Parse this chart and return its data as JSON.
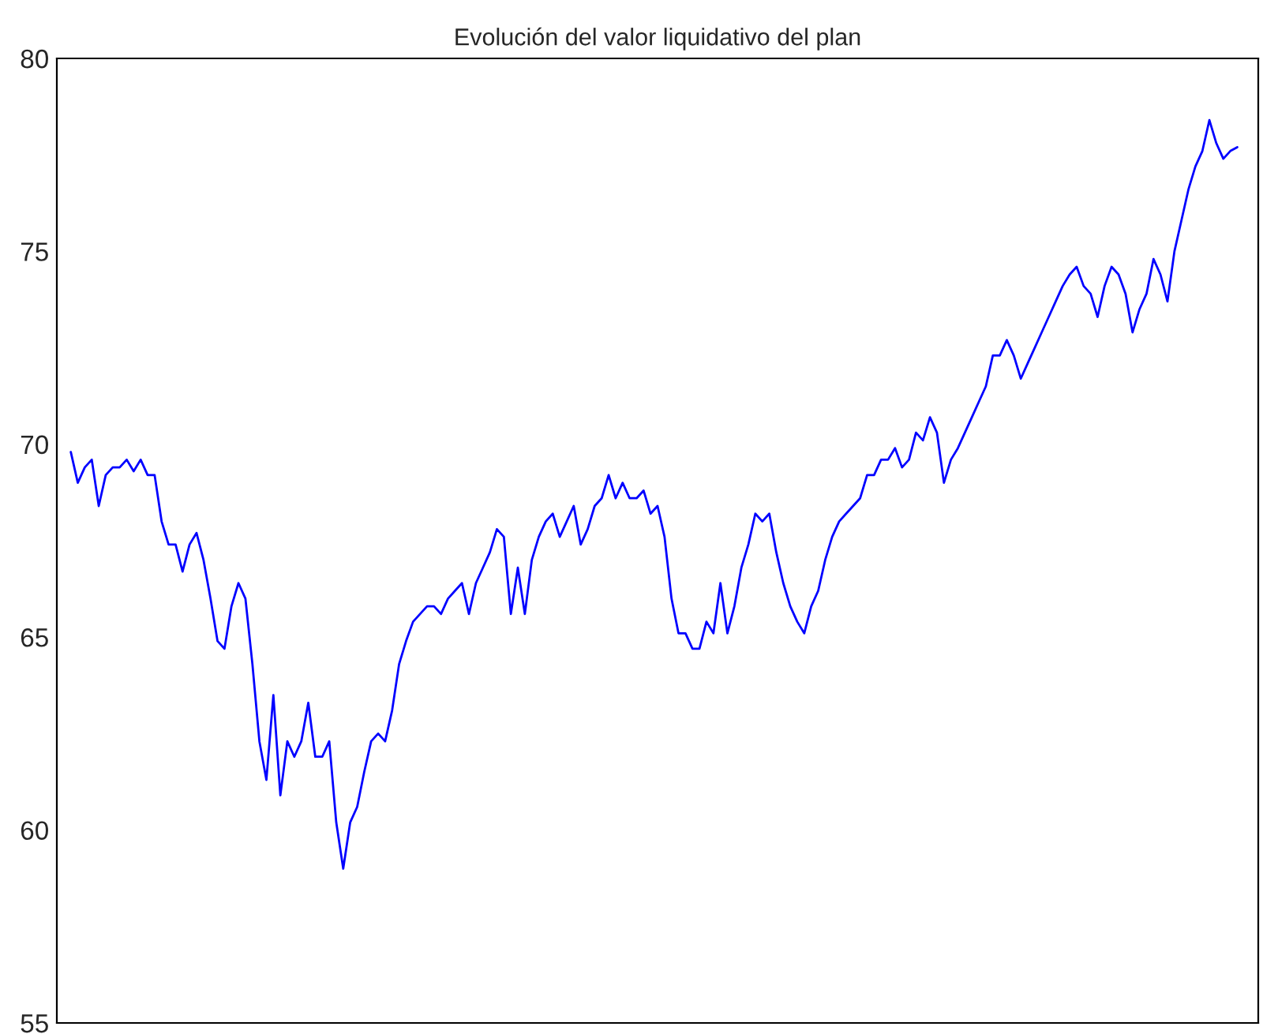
{
  "chart_data": {
    "type": "line",
    "title": "Evolución del valor liquidativo del plan",
    "categories": [
      null,
      null,
      null,
      null,
      null,
      null,
      null,
      null,
      null,
      null,
      null,
      null,
      null,
      null,
      null,
      null,
      null,
      null,
      null,
      null,
      null,
      null,
      null,
      null,
      null,
      null,
      null,
      null,
      null,
      null,
      null,
      null,
      null,
      null,
      null,
      null,
      null,
      null,
      null,
      null,
      null,
      null,
      null,
      null,
      null,
      null,
      null,
      null,
      null,
      null,
      null,
      null,
      null,
      null,
      null,
      null,
      null,
      null,
      null,
      null,
      null,
      null,
      null,
      null,
      null,
      null,
      null,
      null,
      null,
      null,
      null,
      null,
      null,
      null,
      null,
      null,
      null,
      null,
      null,
      null,
      null,
      null,
      null,
      null,
      null,
      null,
      null,
      null,
      null,
      null,
      null,
      null,
      null,
      null,
      null,
      null,
      null,
      null,
      null,
      null,
      null,
      null,
      null,
      null,
      null,
      null,
      null,
      null,
      null,
      null,
      null,
      null,
      null,
      null,
      null,
      null,
      null,
      null,
      null,
      null,
      null,
      null,
      null,
      null,
      null,
      null,
      null,
      null,
      null,
      null,
      null,
      null,
      null,
      null,
      null,
      null,
      null,
      null,
      null,
      null,
      null,
      null,
      null,
      null,
      null,
      null,
      null,
      null,
      null,
      null,
      null,
      null,
      null,
      null,
      null,
      null,
      null,
      null,
      null,
      null,
      null,
      null,
      null,
      null,
      null,
      null,
      null,
      null
    ],
    "series": [
      {
        "color": "#0000ff",
        "values": [
          69.8,
          69.0,
          69.4,
          69.6,
          68.4,
          69.2,
          69.4,
          69.4,
          69.6,
          69.3,
          69.6,
          69.2,
          69.2,
          68.0,
          67.4,
          67.4,
          66.7,
          67.4,
          67.7,
          67.0,
          66.0,
          64.9,
          64.7,
          65.8,
          66.4,
          66.0,
          64.3,
          62.3,
          61.3,
          63.5,
          60.9,
          62.3,
          61.9,
          62.3,
          63.3,
          61.9,
          61.9,
          62.3,
          60.2,
          59.0,
          60.2,
          60.6,
          61.5,
          62.3,
          62.5,
          62.3,
          63.1,
          64.3,
          64.9,
          65.4,
          65.6,
          65.8,
          65.8,
          65.6,
          66.0,
          66.2,
          66.4,
          65.6,
          66.4,
          66.8,
          67.2,
          67.8,
          67.6,
          65.6,
          66.8,
          65.6,
          67.0,
          67.6,
          68.0,
          68.2,
          67.6,
          68.0,
          68.4,
          67.4,
          67.8,
          68.4,
          68.6,
          69.2,
          68.6,
          69.0,
          68.6,
          68.6,
          68.8,
          68.2,
          68.4,
          67.6,
          66.0,
          65.1,
          65.1,
          64.7,
          64.7,
          65.4,
          65.1,
          66.4,
          65.1,
          65.8,
          66.8,
          67.4,
          68.2,
          68.0,
          68.2,
          67.2,
          66.4,
          65.8,
          65.4,
          65.1,
          65.8,
          66.2,
          67.0,
          67.6,
          68.0,
          68.2,
          68.4,
          68.6,
          69.2,
          69.2,
          69.6,
          69.6,
          69.9,
          69.4,
          69.6,
          70.3,
          70.1,
          70.7,
          70.3,
          69.0,
          69.6,
          69.9,
          70.3,
          70.7,
          71.1,
          71.5,
          72.3,
          72.3,
          72.7,
          72.3,
          71.7,
          72.1,
          72.5,
          72.9,
          73.3,
          73.7,
          74.1,
          74.4,
          74.6,
          74.1,
          73.9,
          73.3,
          74.1,
          74.6,
          74.4,
          73.9,
          72.9,
          73.5,
          73.9,
          74.8,
          74.4,
          73.7,
          75.0,
          75.8,
          76.6,
          77.2,
          77.6,
          78.4,
          77.8,
          77.4,
          77.6,
          77.7
        ]
      }
    ],
    "ylim": [
      55,
      80
    ],
    "yticks": [
      55,
      60,
      65,
      70,
      75,
      80
    ],
    "grid": false,
    "legend": false,
    "marker": "none",
    "line_style": "solid"
  }
}
